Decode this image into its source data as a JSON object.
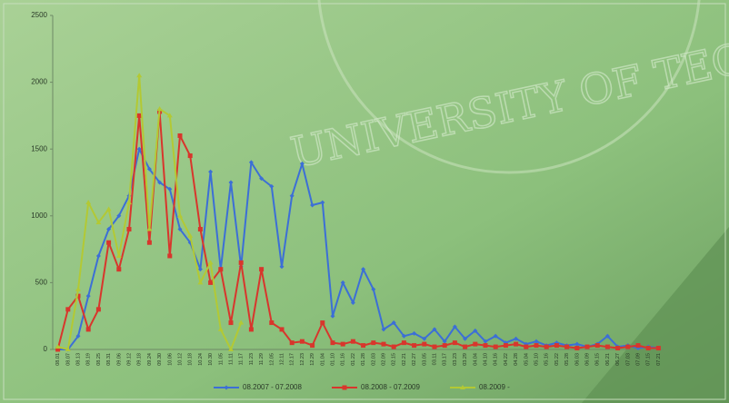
{
  "watermark": "UNIVERSITY OF TEC",
  "chart_data": {
    "type": "line",
    "categories": [
      "08.01",
      "08.07",
      "08.13",
      "08.19",
      "08.25",
      "08.31",
      "09.06",
      "09.12",
      "09.18",
      "09.24",
      "09.30",
      "10.06",
      "10.12",
      "10.18",
      "10.24",
      "10.30",
      "11.05",
      "11.11",
      "11.17",
      "11.23",
      "11.29",
      "12.05",
      "12.11",
      "12.17",
      "12.23",
      "12.29",
      "01.04",
      "01.10",
      "01.16",
      "01.22",
      "01.28",
      "02.03",
      "02.09",
      "02.15",
      "02.21",
      "02.27",
      "03.05",
      "03.11",
      "03.17",
      "03.23",
      "03.29",
      "04.04",
      "04.10",
      "04.16",
      "04.22",
      "04.28",
      "05.04",
      "05.10",
      "05.16",
      "05.22",
      "05.28",
      "06.03",
      "06.09",
      "06.15",
      "06.21",
      "06.27",
      "07.03",
      "07.09",
      "07.15",
      "07.21"
    ],
    "series": [
      {
        "name": "08.2007 - 07.2008",
        "color": "#3c6fd6",
        "marker": "diamond",
        "values": [
          0,
          0,
          100,
          400,
          700,
          900,
          1000,
          1150,
          1500,
          1350,
          1250,
          1200,
          900,
          800,
          600,
          1330,
          600,
          1250,
          620,
          1400,
          1280,
          1220,
          620,
          1150,
          1390,
          1080,
          1100,
          250,
          500,
          350,
          600,
          450,
          150,
          200,
          100,
          120,
          80,
          150,
          60,
          170,
          80,
          140,
          60,
          100,
          50,
          80,
          40,
          60,
          30,
          50,
          30,
          40,
          20,
          40,
          100,
          20,
          30,
          10,
          20,
          10
        ]
      },
      {
        "name": "08.2008 - 07.2009",
        "color": "#d8362c",
        "marker": "square",
        "values": [
          0,
          300,
          400,
          150,
          300,
          800,
          600,
          900,
          1750,
          800,
          1780,
          700,
          1600,
          1450,
          900,
          500,
          600,
          200,
          650,
          150,
          600,
          200,
          150,
          50,
          60,
          30,
          200,
          50,
          40,
          60,
          30,
          50,
          40,
          20,
          50,
          30,
          40,
          20,
          30,
          50,
          20,
          40,
          30,
          20,
          30,
          40,
          20,
          30,
          20,
          30,
          20,
          10,
          20,
          30,
          20,
          10,
          20,
          30,
          10,
          10
        ]
      },
      {
        "name": "08.2009 -",
        "color": "#b3c934",
        "marker": "triangle",
        "values": [
          20,
          0,
          450,
          1100,
          950,
          1050,
          700,
          1100,
          2050,
          900,
          1800,
          1750,
          1000,
          850,
          500,
          650,
          150,
          0,
          200,
          null,
          null,
          null,
          null,
          null,
          null,
          null,
          null,
          null,
          null,
          null,
          null,
          null,
          null,
          null,
          null,
          null,
          null,
          null,
          null,
          null,
          null,
          null,
          null,
          null,
          null,
          null,
          null,
          null,
          null,
          null,
          null,
          null,
          null,
          null,
          null,
          null,
          null,
          null,
          null,
          null
        ]
      }
    ],
    "ylim": [
      0,
      2500
    ],
    "yticks": [
      0,
      500,
      1000,
      1500,
      2000,
      2500
    ],
    "legend": "bottom"
  }
}
